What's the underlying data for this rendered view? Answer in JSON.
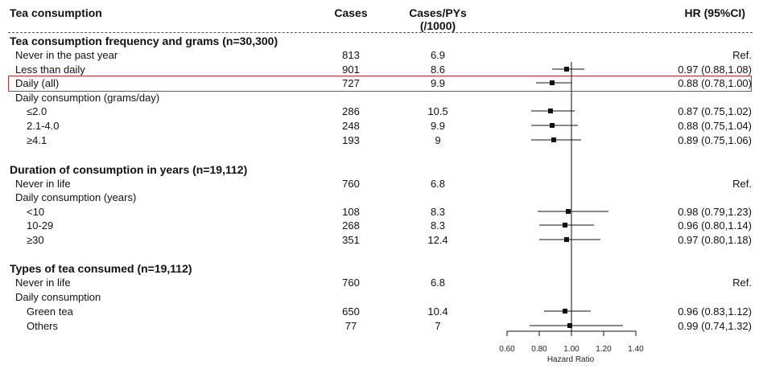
{
  "headers": {
    "label": "Tea consumption",
    "cases": "Cases",
    "rate_line1": "Cases/PYs",
    "rate_line2": "(/1000)",
    "hr": "HR (95%CI)"
  },
  "sections": [
    {
      "title": "Tea consumption frequency and grams (n=30,300)"
    },
    {
      "title": "Duration of consumption in years (n=19,112)"
    },
    {
      "title": "Types of tea consumed (n=19,112)"
    }
  ],
  "rows": [
    {
      "label": "Never in the past year",
      "cases": "813",
      "rate": "6.9",
      "hr_text": "Ref."
    },
    {
      "label": "Less than daily",
      "cases": "901",
      "rate": "8.6",
      "hr_text": "0.97 (0.88,1.08)"
    },
    {
      "label": "Daily (all)",
      "cases": "727",
      "rate": "9.9",
      "hr_text": "0.88 (0.78,1.00)",
      "highlighted": true
    },
    {
      "label": "Daily consumption (grams/day)"
    },
    {
      "label": "≤2.0",
      "cases": "286",
      "rate": "10.5",
      "hr_text": "0.87 (0.75,1.02)"
    },
    {
      "label": "2.1-4.0",
      "cases": "248",
      "rate": "9.9",
      "hr_text": "0.88 (0.75,1.04)"
    },
    {
      "label": "≥4.1",
      "cases": "193",
      "rate": "9",
      "hr_text": "0.89 (0.75,1.06)"
    },
    {
      "label": "Never in life",
      "cases": "760",
      "rate": "6.8",
      "hr_text": "Ref."
    },
    {
      "label": "Daily consumption (years)"
    },
    {
      "label": "<10",
      "cases": "108",
      "rate": "8.3",
      "hr_text": "0.98 (0.79,1.23)"
    },
    {
      "label": "10-29",
      "cases": "268",
      "rate": "8.3",
      "hr_text": "0.96 (0.80,1.14)"
    },
    {
      "label": "≥30",
      "cases": "351",
      "rate": "12.4",
      "hr_text": "0.97 (0.80,1.18)"
    },
    {
      "label": "Never in life",
      "cases": "760",
      "rate": "6.8",
      "hr_text": "Ref."
    },
    {
      "label": "Daily consumption"
    },
    {
      "label": "Green tea",
      "cases": "650",
      "rate": "10.4",
      "hr_text": "0.96 (0.83,1.12)"
    },
    {
      "label": "Others",
      "cases": "77",
      "rate": "7",
      "hr_text": "0.99 (0.74,1.32)"
    }
  ],
  "colors": {
    "highlight_border": "#c0392b",
    "marker": "#111111"
  },
  "chart_data": {
    "type": "forest",
    "xlabel": "Hazard Ratio",
    "xlim": [
      0.6,
      1.4
    ],
    "ticks": [
      "0.60",
      "0.80",
      "1.00",
      "1.20",
      "1.40"
    ],
    "reference_line": 1.0,
    "points": [
      {
        "label": "Less than daily",
        "hr": 0.97,
        "lo": 0.88,
        "hi": 1.08
      },
      {
        "label": "Daily (all)",
        "hr": 0.88,
        "lo": 0.78,
        "hi": 1.0
      },
      {
        "label": "≤2.0",
        "hr": 0.87,
        "lo": 0.75,
        "hi": 1.02
      },
      {
        "label": "2.1-4.0",
        "hr": 0.88,
        "lo": 0.75,
        "hi": 1.04
      },
      {
        "label": "≥4.1",
        "hr": 0.89,
        "lo": 0.75,
        "hi": 1.06
      },
      {
        "label": "<10",
        "hr": 0.98,
        "lo": 0.79,
        "hi": 1.23
      },
      {
        "label": "10-29",
        "hr": 0.96,
        "lo": 0.8,
        "hi": 1.14
      },
      {
        "label": "≥30",
        "hr": 0.97,
        "lo": 0.8,
        "hi": 1.18
      },
      {
        "label": "Green tea",
        "hr": 0.96,
        "lo": 0.83,
        "hi": 1.12
      },
      {
        "label": "Others",
        "hr": 0.99,
        "lo": 0.74,
        "hi": 1.32
      }
    ]
  }
}
